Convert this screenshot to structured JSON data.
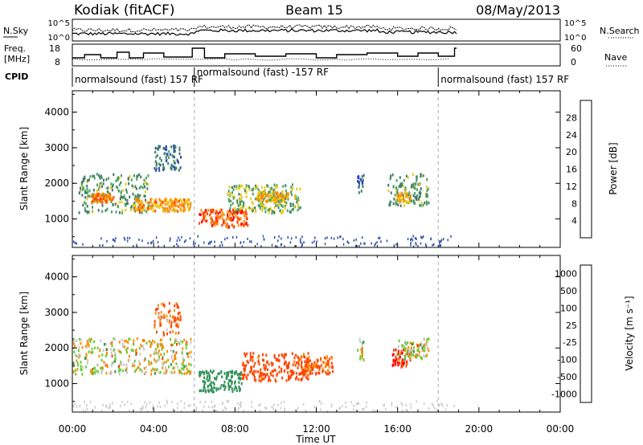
{
  "header": {
    "station": "Kodiak (fitACF)",
    "beam": "Beam 15",
    "date": "08/May/2013"
  },
  "strips": {
    "nsky_label": "N.Sky",
    "nsky_ticks": [
      "10^5",
      "10^0"
    ],
    "nsearch_label": "N.Search",
    "nsearch_ticks": [
      "10^5",
      "10^0"
    ],
    "freq_label_1": "Freq.",
    "freq_label_2": "[MHz]",
    "freq_ticks": [
      "18",
      "8"
    ],
    "nave_label": "Nave",
    "nave_ticks": [
      "60",
      "0"
    ],
    "cpid_label": "CPID",
    "cpid_segments": [
      {
        "label": "normalsound (fast) 157 RF",
        "start": 0.0,
        "end": 6.0
      },
      {
        "label": "normalsound (fast) -157 RF",
        "start": 6.0,
        "end": 18.0
      },
      {
        "label": "normalsound (fast) 157 RF",
        "start": 18.0,
        "end": 18.9
      }
    ]
  },
  "chart_data": [
    {
      "type": "heatmap",
      "title": "",
      "xlabel": "Time UT",
      "ylabel": "Slant Range [km]",
      "xlim": [
        0,
        24
      ],
      "ylim": [
        200,
        4600
      ],
      "x_ticks": [
        "00:00",
        "04:00",
        "08:00",
        "12:00",
        "16:00",
        "20:00",
        "00:00"
      ],
      "y_ticks": [
        "1000",
        "2000",
        "3000",
        "4000"
      ],
      "colorbar": {
        "label": "Power [dB]",
        "ticks": [
          "28",
          "24",
          "20",
          "16",
          "12",
          "8",
          "4"
        ],
        "range": [
          0,
          30
        ],
        "colors": [
          "#1a1aff",
          "#2e4fa8",
          "#3d7a6a",
          "#4aa060",
          "#e6c91a",
          "#ff8c00",
          "#ff4500",
          "#ff0000"
        ]
      },
      "regions": [
        {
          "t0": 0.3,
          "t1": 3.8,
          "r0": 1200,
          "r1": 2300,
          "power": 12
        },
        {
          "t0": 0.9,
          "t1": 2.0,
          "r0": 1500,
          "r1": 1750,
          "power": 22
        },
        {
          "t0": 3.0,
          "t1": 5.8,
          "r0": 1250,
          "r1": 1600,
          "power": 20
        },
        {
          "t0": 4.0,
          "t1": 5.3,
          "r0": 2400,
          "r1": 3100,
          "power": 8
        },
        {
          "t0": 6.2,
          "t1": 8.6,
          "r0": 800,
          "r1": 1300,
          "power": 24
        },
        {
          "t0": 7.6,
          "t1": 11.2,
          "r0": 1200,
          "r1": 2000,
          "power": 14
        },
        {
          "t0": 9.0,
          "t1": 10.6,
          "r0": 1500,
          "r1": 1800,
          "power": 18
        },
        {
          "t0": 15.5,
          "t1": 17.5,
          "r0": 1400,
          "r1": 2300,
          "power": 12
        },
        {
          "t0": 15.9,
          "t1": 16.6,
          "r0": 1500,
          "r1": 1800,
          "power": 18
        },
        {
          "t0": 14.0,
          "t1": 14.3,
          "r0": 1700,
          "r1": 2300,
          "power": 6
        }
      ]
    },
    {
      "type": "heatmap",
      "title": "",
      "xlabel": "Time UT",
      "ylabel": "Slant Range [km]",
      "xlim": [
        0,
        24
      ],
      "ylim": [
        200,
        4600
      ],
      "x_ticks": [
        "00:00",
        "04:00",
        "08:00",
        "12:00",
        "16:00",
        "20:00",
        "00:00"
      ],
      "y_ticks": [
        "1000",
        "2000",
        "3000",
        "4000"
      ],
      "colorbar": {
        "label": "Velocity [m s⁻¹]",
        "ticks": [
          "1000",
          "500",
          "100",
          "25",
          "-25",
          "-100",
          "-500",
          "-1000"
        ],
        "range": [
          -1000,
          1000
        ],
        "colors": [
          "#ff0000",
          "#ff4500",
          "#ff8c00",
          "#ffb000",
          "#c8c8c8",
          "#c8c8c8",
          "#66cc33",
          "#2f8f57",
          "#2e4fa8",
          "#1a1aff"
        ]
      },
      "regions": [
        {
          "t0": 0.0,
          "t1": 5.8,
          "r0": 1300,
          "r1": 2300,
          "vel": 0
        },
        {
          "t0": 4.0,
          "t1": 5.3,
          "r0": 2400,
          "r1": 3300,
          "vel": -120
        },
        {
          "t0": 6.2,
          "t1": 8.3,
          "r0": 800,
          "r1": 1400,
          "vel": 250
        },
        {
          "t0": 8.3,
          "t1": 11.6,
          "r0": 1100,
          "r1": 1900,
          "vel": -200
        },
        {
          "t0": 11.0,
          "t1": 12.8,
          "r0": 1300,
          "r1": 1800,
          "vel": -150
        },
        {
          "t0": 15.7,
          "t1": 16.6,
          "r0": 1500,
          "r1": 2000,
          "vel": -500
        },
        {
          "t0": 16.0,
          "t1": 17.5,
          "r0": 1700,
          "r1": 2300,
          "vel": 0
        },
        {
          "t0": 14.0,
          "t1": 14.3,
          "r0": 1700,
          "r1": 2300,
          "vel": 0
        }
      ]
    }
  ]
}
